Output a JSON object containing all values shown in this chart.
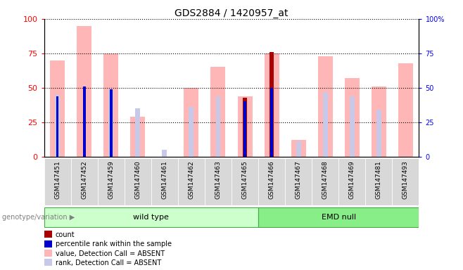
{
  "title": "GDS2884 / 1420957_at",
  "samples": [
    "GSM147451",
    "GSM147452",
    "GSM147459",
    "GSM147460",
    "GSM147461",
    "GSM147462",
    "GSM147463",
    "GSM147465",
    "GSM147466",
    "GSM147467",
    "GSM147468",
    "GSM147469",
    "GSM147481",
    "GSM147493"
  ],
  "wt_count": 8,
  "emd_count": 6,
  "value_absent": [
    70,
    95,
    75,
    29,
    0,
    50,
    65,
    44,
    75,
    12,
    73,
    57,
    51,
    68
  ],
  "rank_absent": [
    45,
    0,
    49,
    35,
    5,
    36,
    44,
    0,
    0,
    11,
    47,
    44,
    34,
    0
  ],
  "count": [
    0,
    0,
    0,
    0,
    0,
    0,
    0,
    43,
    76,
    0,
    0,
    0,
    0,
    0
  ],
  "percentile": [
    44,
    51,
    49,
    0,
    0,
    0,
    0,
    40,
    50,
    0,
    0,
    0,
    0,
    0
  ],
  "ylim": [
    0,
    100
  ],
  "yticks": [
    0,
    25,
    50,
    75,
    100
  ],
  "color_value_absent": "#FFB6B6",
  "color_rank_absent": "#C8C8E8",
  "color_count": "#AA0000",
  "color_percentile": "#0000CC",
  "wt_color": "#CCFFCC",
  "emd_color": "#88EE88",
  "legend_items": [
    {
      "label": "count",
      "color": "#AA0000"
    },
    {
      "label": "percentile rank within the sample",
      "color": "#0000CC"
    },
    {
      "label": "value, Detection Call = ABSENT",
      "color": "#FFB6B6"
    },
    {
      "label": "rank, Detection Call = ABSENT",
      "color": "#C8C8E8"
    }
  ]
}
